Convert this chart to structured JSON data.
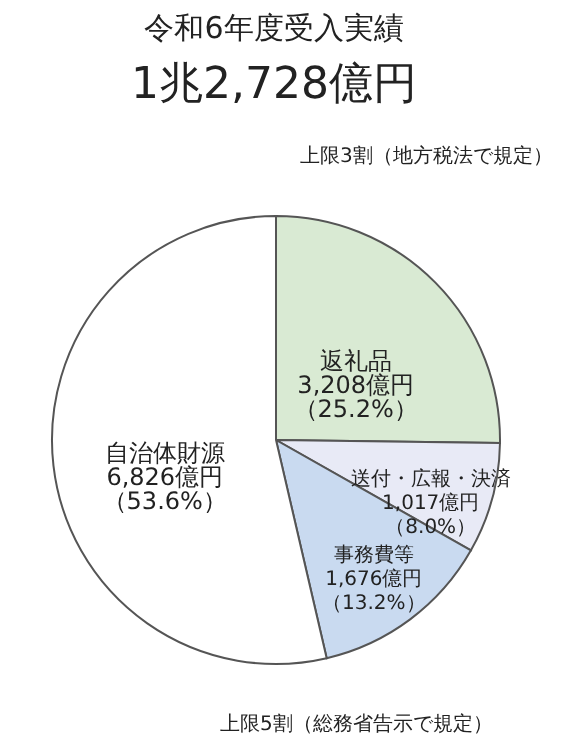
{
  "chart_data": {
    "type": "pie",
    "title": "令和6年度受入実績",
    "subtitle": "1兆2,728億円",
    "categories": [
      "返礼品",
      "送付・広報・決済",
      "事務費等",
      "自治体財源"
    ],
    "values": [
      3208,
      1017,
      1676,
      6826
    ],
    "value_labels": [
      "3,208億円（25.2%）",
      "1,017億円（8.0%）",
      "1,676億円（13.2%）",
      "6,826億円（53.6%）"
    ],
    "colors": [
      "#d9ead3",
      "#e8eaf6",
      "#c9daf0",
      "#ffffff"
    ],
    "annotations": [
      "上限3割（地方税法で規定）",
      "上限5割（総務省告示で規定）"
    ]
  }
}
